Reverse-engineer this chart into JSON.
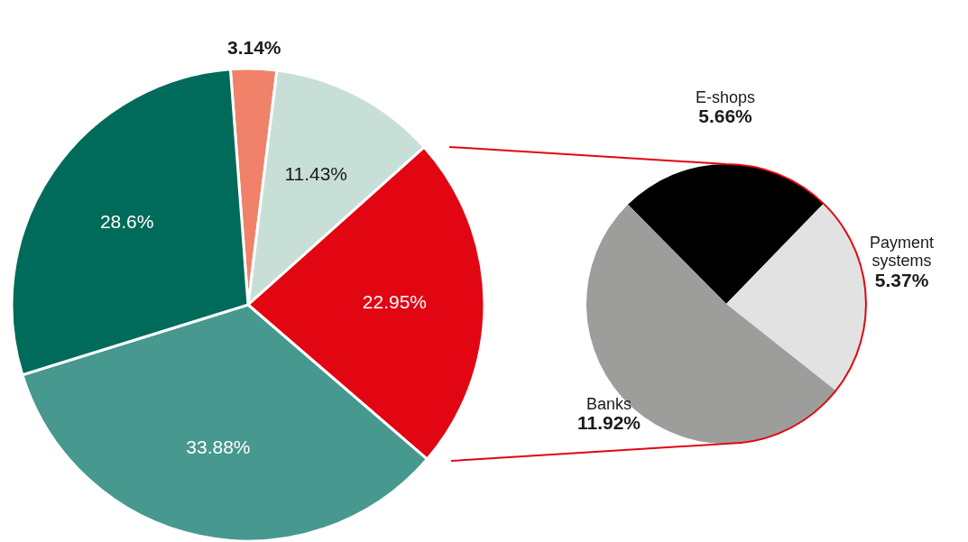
{
  "chart_data": [
    {
      "type": "pie",
      "categories": [
        null,
        null,
        null,
        null,
        null
      ],
      "values": [
        3.14,
        11.43,
        22.95,
        33.88,
        28.6
      ],
      "colors": [
        "#f0826a",
        "#c8dfd8",
        "#e20613",
        "#47988e",
        "#006b5a"
      ],
      "value_labels": [
        "3.14%",
        "11.43%",
        "22.95%",
        "33.88%",
        "28.6%"
      ]
    },
    {
      "type": "pie",
      "categories": [
        "E-shops",
        "Payment systems",
        "Banks"
      ],
      "values": [
        5.66,
        5.37,
        11.92
      ],
      "colors": [
        "#000000",
        "#e2e2e2",
        "#9d9d9c"
      ],
      "value_labels": [
        "5.66%",
        "5.37%",
        "11.92%"
      ]
    }
  ]
}
